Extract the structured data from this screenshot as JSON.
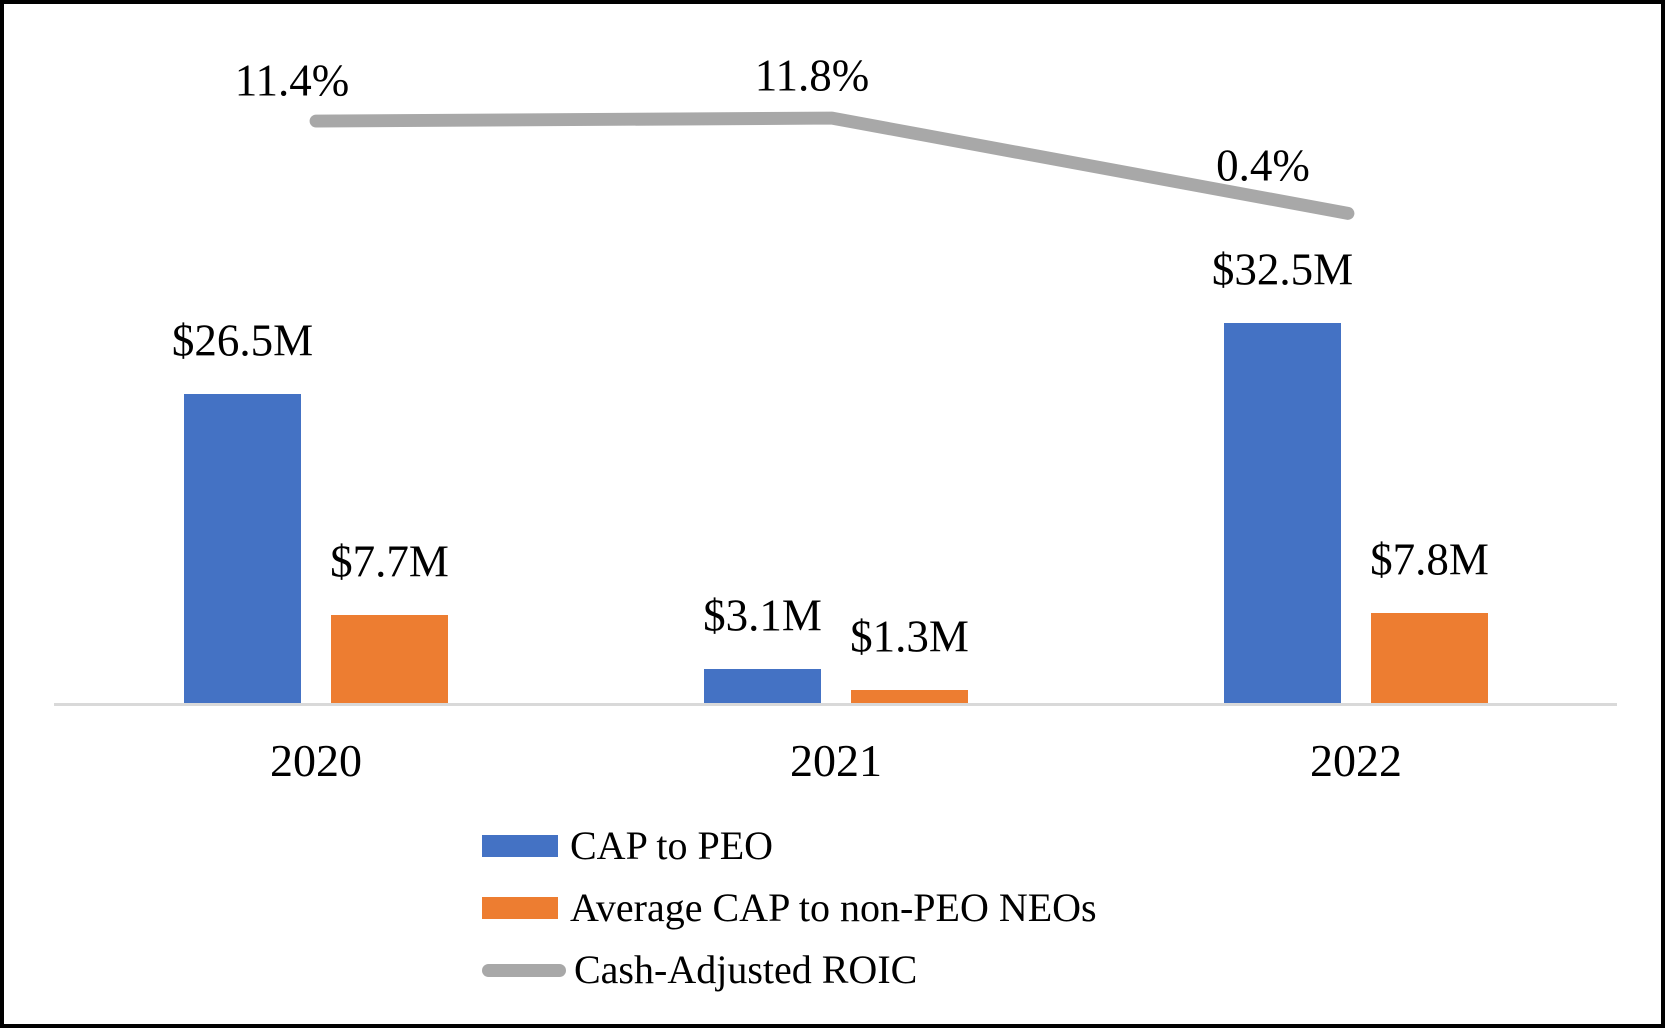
{
  "chart_data": {
    "type": "combo-bar-line",
    "categories": [
      "2020",
      "2021",
      "2022"
    ],
    "series": [
      {
        "key": "cap-to-peo",
        "name": "CAP to PEO",
        "type": "bar",
        "color": "#4472C4",
        "values": [
          26.5,
          3.1,
          32.5
        ],
        "data_labels": [
          "$26.5M",
          "$3.1M",
          "$32.5M"
        ]
      },
      {
        "key": "avg-cap-to-non-peo-neos",
        "name": "Average CAP to non-PEO NEOs",
        "type": "bar",
        "color": "#ED7D31",
        "values": [
          7.7,
          1.3,
          7.8
        ],
        "data_labels": [
          "$7.7M",
          "$1.3M",
          "$7.8M"
        ]
      },
      {
        "key": "cash-adjusted-roic",
        "name": "Cash-Adjusted ROIC",
        "type": "line",
        "color": "#A8A8A8",
        "values": [
          11.4,
          11.8,
          0.4
        ],
        "data_labels": [
          "11.4%",
          "11.8%",
          "0.4%"
        ]
      }
    ],
    "title": "",
    "xlabel": "",
    "ylabel": "",
    "grid": false,
    "value_axis_visible": false,
    "legend_position": "bottom-left",
    "axis_line_color": "#D9D9D9",
    "text_color": "#000000",
    "background_color": "#FFFFFF",
    "border_color": "#000000"
  }
}
